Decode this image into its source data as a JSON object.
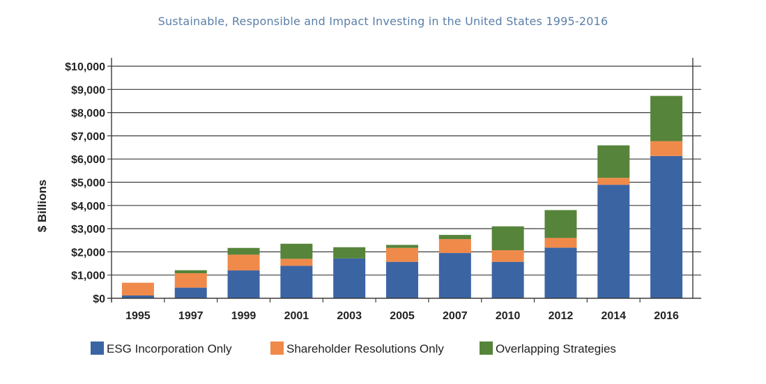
{
  "title": "Sustainable, Responsible and Impact Investing in the United States 1995-2016",
  "chart_data": {
    "type": "bar",
    "stacked": true,
    "categories": [
      "1995",
      "1997",
      "1999",
      "2001",
      "2003",
      "2005",
      "2007",
      "2010",
      "2012",
      "2014",
      "2016"
    ],
    "series": [
      {
        "name": "ESG Incorporation Only",
        "color": "#3b64a3",
        "values": [
          120,
          460,
          1200,
          1400,
          1720,
          1570,
          1950,
          1570,
          2180,
          4890,
          6130
        ]
      },
      {
        "name": "Shareholder Resolutions Only",
        "color": "#f08a4b",
        "values": [
          550,
          620,
          680,
          300,
          0,
          600,
          600,
          500,
          420,
          300,
          640
        ]
      },
      {
        "name": "Overlapping Strategies",
        "color": "#56843a",
        "values": [
          0,
          130,
          290,
          650,
          480,
          130,
          180,
          1030,
          1200,
          1400,
          1950
        ]
      }
    ],
    "ylabel": "$ Billions",
    "ylim": [
      0,
      10000
    ],
    "yticks": [
      "$0",
      "$1,000",
      "$2,000",
      "$3,000",
      "$4,000",
      "$5,000",
      "$6,000",
      "$7,000",
      "$8,000",
      "$9,000",
      "$10,000"
    ],
    "grid": true,
    "legend_position": "bottom"
  }
}
